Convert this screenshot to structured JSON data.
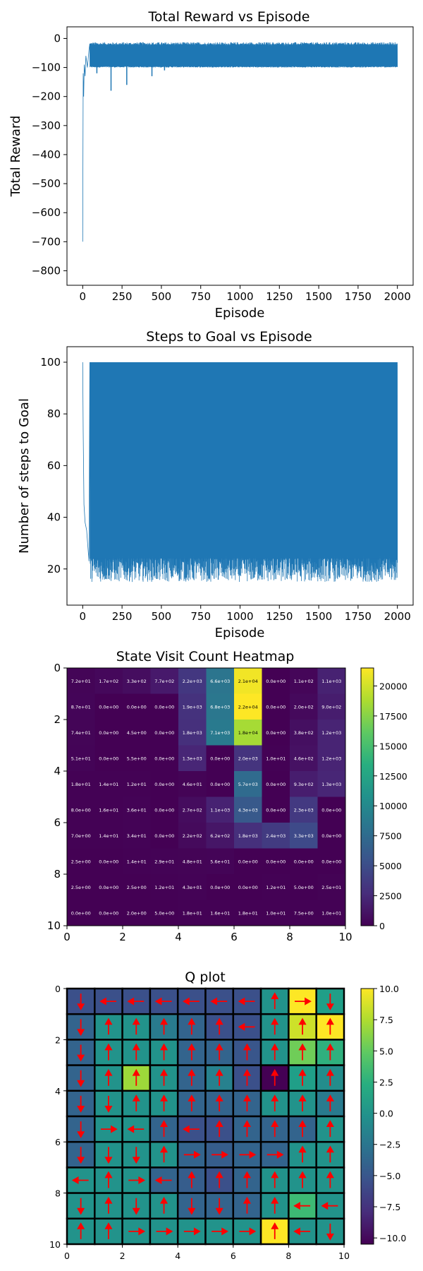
{
  "chart_data": [
    {
      "type": "line",
      "title": "Total Reward vs Episode",
      "xlabel": "Episode",
      "ylabel": "Total Reward",
      "xlim": [
        -100,
        2100
      ],
      "ylim": [
        -850,
        40
      ],
      "xticks": [
        0,
        250,
        500,
        750,
        1000,
        1250,
        1500,
        1750,
        2000
      ],
      "yticks": [
        0,
        -100,
        -200,
        -300,
        -400,
        -500,
        -600,
        -700,
        -800
      ],
      "color": "#1f77b4",
      "episodes": 2000,
      "band": {
        "upper": -12,
        "lower": -100,
        "typical_upper": -20
      },
      "early_points": [
        {
          "x": 0,
          "y": -700
        },
        {
          "x": 3,
          "y": -120
        },
        {
          "x": 6,
          "y": -200
        },
        {
          "x": 10,
          "y": -90
        },
        {
          "x": 15,
          "y": -130
        },
        {
          "x": 20,
          "y": -60
        },
        {
          "x": 30,
          "y": -100
        },
        {
          "x": 40,
          "y": -40
        }
      ],
      "spikes": [
        {
          "x": 180,
          "y": -180
        },
        {
          "x": 280,
          "y": -160
        },
        {
          "x": 440,
          "y": -130
        },
        {
          "x": 520,
          "y": -110
        },
        {
          "x": 90,
          "y": -120
        }
      ]
    },
    {
      "type": "line",
      "title": "Steps to Goal vs Episode",
      "xlabel": "Episode",
      "ylabel": "Number of steps to Goal",
      "xlim": [
        -100,
        2100
      ],
      "ylim": [
        6,
        106
      ],
      "xticks": [
        0,
        250,
        500,
        750,
        1000,
        1250,
        1500,
        1750,
        2000
      ],
      "yticks": [
        20,
        40,
        60,
        80,
        100
      ],
      "color": "#1f77b4",
      "episodes": 2000,
      "band": {
        "upper": 100,
        "lower": 13
      },
      "early_points": [
        {
          "x": 0,
          "y": 100
        },
        {
          "x": 3,
          "y": 73
        },
        {
          "x": 8,
          "y": 45
        },
        {
          "x": 15,
          "y": 38
        },
        {
          "x": 25,
          "y": 35
        },
        {
          "x": 40,
          "y": 23
        }
      ]
    },
    {
      "type": "heatmap",
      "title": "State Visit Count Heatmap",
      "xlim": [
        0,
        10
      ],
      "ylim": [
        10,
        0
      ],
      "xticks": [
        0,
        2,
        4,
        6,
        8,
        10
      ],
      "yticks": [
        0,
        2,
        4,
        6,
        8,
        10
      ],
      "colormap": "viridis",
      "vmin": 0,
      "vmax": 21500,
      "colorbar_ticks": [
        0,
        2500,
        5000,
        7500,
        10000,
        12500,
        15000,
        17500,
        20000
      ],
      "labels": [
        [
          "7.2e+01",
          "1.7e+02",
          "3.3e+02",
          "7.7e+02",
          "2.2e+03",
          "6.6e+03",
          "2.1e+04",
          "0.0e+00",
          "1.1e+02",
          "1.1e+03"
        ],
        [
          "8.7e+01",
          "0.0e+00",
          "0.0e+00",
          "0.0e+00",
          "1.9e+03",
          "6.8e+03",
          "2.2e+04",
          "0.0e+00",
          "2.0e+02",
          "9.0e+02"
        ],
        [
          "7.4e+01",
          "0.0e+00",
          "4.5e+00",
          "0.0e+00",
          "1.8e+03",
          "7.1e+03",
          "1.8e+04",
          "0.0e+00",
          "3.8e+02",
          "1.2e+03"
        ],
        [
          "5.1e+01",
          "0.0e+00",
          "5.5e+00",
          "0.0e+00",
          "1.3e+03",
          "0.0e+00",
          "2.0e+03",
          "1.0e+01",
          "4.6e+02",
          "1.2e+03"
        ],
        [
          "1.8e+01",
          "1.4e+01",
          "1.2e+01",
          "0.0e+00",
          "4.6e+01",
          "0.0e+00",
          "5.7e+03",
          "0.0e+00",
          "9.3e+02",
          "1.3e+03"
        ],
        [
          "8.0e+00",
          "1.6e+01",
          "3.6e+01",
          "0.0e+00",
          "2.7e+02",
          "1.1e+03",
          "4.3e+03",
          "0.0e+00",
          "2.3e+03",
          "0.0e+00"
        ],
        [
          "7.0e+00",
          "1.4e+01",
          "3.4e+01",
          "0.0e+00",
          "2.2e+02",
          "6.2e+02",
          "1.8e+03",
          "2.4e+03",
          "3.3e+03",
          "0.0e+00"
        ],
        [
          "2.5e+00",
          "0.0e+00",
          "1.4e+01",
          "2.9e+01",
          "4.8e+01",
          "5.6e+01",
          "0.0e+00",
          "0.0e+00",
          "0.0e+00",
          "0.0e+00"
        ],
        [
          "2.5e+00",
          "0.0e+00",
          "2.5e+00",
          "1.2e+01",
          "4.3e+01",
          "0.0e+00",
          "0.0e+00",
          "1.2e+01",
          "5.0e+00",
          "2.5e+01"
        ],
        [
          "0.0e+00",
          "0.0e+00",
          "2.0e+00",
          "5.0e+00",
          "1.8e+01",
          "1.6e+01",
          "1.8e+01",
          "1.0e+01",
          "7.5e+00",
          "1.0e+01"
        ]
      ]
    },
    {
      "type": "heatmap",
      "title": "Q plot",
      "xlim": [
        0,
        10
      ],
      "ylim": [
        10,
        0
      ],
      "xticks": [
        0,
        2,
        4,
        6,
        8,
        10
      ],
      "yticks": [
        0,
        2,
        4,
        6,
        8,
        10
      ],
      "colormap": "viridis",
      "vmin": -10.5,
      "vmax": 10,
      "colorbar_ticks": [
        10.0,
        7.5,
        5.0,
        2.5,
        0.0,
        -2.5,
        -5.0,
        -7.5,
        -10.0
      ],
      "arrow_color": "#ff0000",
      "values": [
        [
          -5.5,
          -5.5,
          -5.5,
          -5.5,
          -5.5,
          -5.5,
          -5.5,
          0.0,
          10.0,
          1.0
        ],
        [
          -4.0,
          0.0,
          0.0,
          -2.0,
          -4.0,
          -5.5,
          -5.5,
          0.0,
          8.5,
          10.0
        ],
        [
          -4.0,
          0.0,
          0.0,
          0.0,
          -4.0,
          -4.0,
          -5.0,
          0.0,
          5.5,
          2.5
        ],
        [
          -4.0,
          0.0,
          7.0,
          0.0,
          -4.0,
          -1.5,
          -5.5,
          -10.5,
          1.0,
          -0.5
        ],
        [
          -4.0,
          0.0,
          0.0,
          0.0,
          -4.0,
          -4.0,
          -4.0,
          0.0,
          0.0,
          -2.0
        ],
        [
          -4.0,
          0.0,
          0.0,
          -4.0,
          -5.5,
          -5.5,
          -4.0,
          -4.0,
          -4.0,
          0.0
        ],
        [
          -4.0,
          0.0,
          0.0,
          0.0,
          -4.0,
          -4.5,
          -4.0,
          -4.0,
          0.0,
          0.0
        ],
        [
          0.0,
          0.0,
          0.0,
          -4.0,
          -4.5,
          -5.5,
          -4.0,
          0.0,
          0.0,
          0.0
        ],
        [
          0.0,
          0.0,
          0.0,
          0.0,
          -4.0,
          -4.0,
          -4.0,
          0.0,
          3.5,
          0.0
        ],
        [
          0.0,
          0.0,
          0.0,
          0.0,
          0.0,
          0.0,
          0.0,
          10.0,
          0.0,
          0.0
        ]
      ],
      "arrows": [
        [
          "down",
          "left",
          "left",
          "left",
          "left",
          "left",
          "left",
          "up",
          "right",
          "down"
        ],
        [
          "down",
          "up",
          "up",
          "up",
          "up",
          "up",
          "left",
          "up",
          "up",
          "up"
        ],
        [
          "down",
          "up",
          "up",
          "up",
          "up",
          "up",
          "up",
          "up",
          "up",
          "up"
        ],
        [
          "down",
          "up",
          "up",
          "up",
          "up",
          "up",
          "up",
          "up",
          "up",
          "up"
        ],
        [
          "down",
          "down",
          "up",
          "up",
          "up",
          "up",
          "up",
          "up",
          "up",
          "up"
        ],
        [
          "down",
          "right",
          "left",
          "up",
          "left",
          "up",
          "up",
          "up",
          "up",
          "up"
        ],
        [
          "down",
          "down",
          "down",
          "up",
          "right",
          "right",
          "right",
          "right",
          "up",
          "up"
        ],
        [
          "left",
          "up",
          "right",
          "left",
          "up",
          "up",
          "up",
          "up",
          "up",
          "up"
        ],
        [
          "down",
          "up",
          "down",
          "up",
          "down",
          "down",
          "up",
          "up",
          "left",
          "left"
        ],
        [
          "up",
          "up",
          "right",
          "right",
          "right",
          "right",
          "right",
          "up",
          "left",
          "down"
        ]
      ]
    }
  ]
}
